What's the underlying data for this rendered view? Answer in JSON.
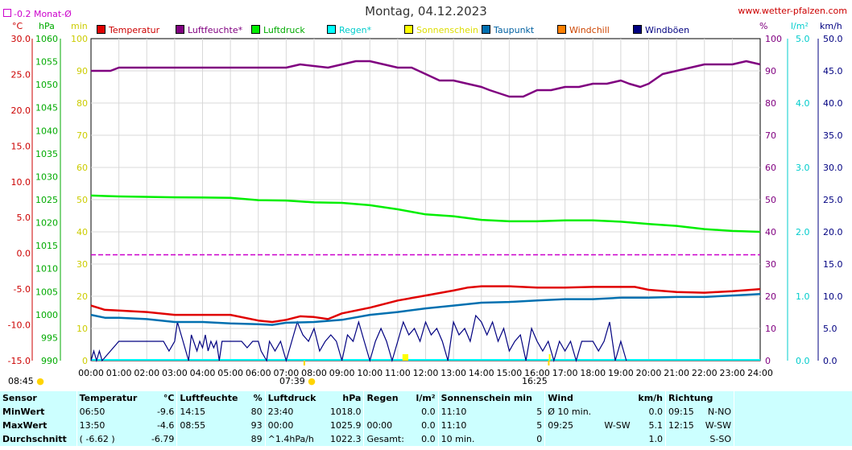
{
  "header": {
    "title": "Montag, 04.12.2023",
    "site": "www.wetter-pfalzen.com",
    "monat_avg": "-0.2 Monat-Ø"
  },
  "units": {
    "temp": "°C",
    "hpa": "hPa",
    "min": "min",
    "pct": "%",
    "lm2": "l/m²",
    "kmh": "km/h"
  },
  "colors": {
    "temperatur": "#e00000",
    "luftfeuchte": "#800080",
    "luftdruck": "#00ee00",
    "regen": "#00ffff",
    "sonnenschein": "#ffff00",
    "taupunkt": "#0070b0",
    "windchill": "#ff8000",
    "windboeen": "#000080"
  },
  "legend": [
    {
      "key": "temperatur",
      "label": "Temperatur",
      "color": "#e00000",
      "text_color": "#cc0000"
    },
    {
      "key": "luftfeuchte",
      "label": "Luftfeuchte*",
      "color": "#800080",
      "text_color": "#800080"
    },
    {
      "key": "luftdruck",
      "label": "Luftdruck",
      "color": "#00ee00",
      "text_color": "#00aa00"
    },
    {
      "key": "regen",
      "label": "Regen*",
      "color": "#00ffff",
      "text_color": "#00cccc"
    },
    {
      "key": "sonnenschein",
      "label": "Sonnenschein",
      "color": "#ffff00",
      "text_color": "#dddd00"
    },
    {
      "key": "taupunkt",
      "label": "Taupunkt",
      "color": "#0070b0",
      "text_color": "#0060a0"
    },
    {
      "key": "windchill",
      "label": "Windchill",
      "color": "#ff8000",
      "text_color": "#cc4400"
    },
    {
      "key": "windboeen",
      "label": "Windböen",
      "color": "#000080",
      "text_color": "#000080"
    }
  ],
  "axis_ticks": {
    "temp": [
      "30.0",
      "25.0",
      "20.0",
      "15.0",
      "10.0",
      "5.0",
      "0.0",
      "-5.0",
      "-10.0",
      "-15.0"
    ],
    "hpa": [
      "1060",
      "1055",
      "1050",
      "1045",
      "1040",
      "1035",
      "1030",
      "1025",
      "1020",
      "1015",
      "1010",
      "1005",
      "1000",
      "995",
      "990"
    ],
    "min": [
      "100",
      "90",
      "80",
      "70",
      "60",
      "50",
      "40",
      "30",
      "20",
      "10",
      "0"
    ],
    "pct": [
      "100",
      "90",
      "80",
      "70",
      "60",
      "50",
      "40",
      "30",
      "20",
      "10",
      "0"
    ],
    "lm2": [
      "5.0",
      "4.0",
      "3.0",
      "2.0",
      "1.0",
      "0.0"
    ],
    "kmh": [
      "50.0",
      "45.0",
      "40.0",
      "35.0",
      "30.0",
      "25.0",
      "20.0",
      "15.0",
      "10.0",
      "5.0",
      "0.0"
    ],
    "time": [
      "00:00",
      "01:00",
      "02:00",
      "03:00",
      "04:00",
      "05:00",
      "06:00",
      "07:00",
      "08:00",
      "09:00",
      "10:00",
      "11:00",
      "12:00",
      "13:00",
      "14:00",
      "15:00",
      "16:00",
      "17:00",
      "18:00",
      "19:00",
      "20:00",
      "21:00",
      "22:00",
      "23:00",
      "24:00"
    ]
  },
  "markers": {
    "sunrise": "07:39",
    "sunset": "16:25",
    "bottom_left": "08:45"
  },
  "chart_data": {
    "type": "line",
    "title": "Montag, 04.12.2023",
    "x_unit": "hours",
    "xlim": [
      0,
      24
    ],
    "monat_avg_temp": -0.2,
    "series": [
      {
        "name": "Luftfeuchte*",
        "axis": "pct",
        "ylim": [
          0,
          100
        ],
        "x": [
          0,
          0.7,
          1,
          3,
          6,
          7,
          7.5,
          8.5,
          9,
          9.5,
          10,
          10.5,
          11,
          11.5,
          12,
          12.5,
          13,
          13.5,
          14,
          14.3,
          15,
          15.5,
          16,
          16.5,
          17,
          17.5,
          18,
          18.5,
          19,
          19.3,
          19.7,
          20,
          20.5,
          21,
          21.5,
          22,
          22.5,
          23,
          23.5,
          24
        ],
        "y": [
          90,
          90,
          91,
          91,
          91,
          91,
          92,
          91,
          92,
          93,
          93,
          92,
          91,
          91,
          89,
          87,
          87,
          86,
          85,
          84,
          82,
          82,
          84,
          84,
          85,
          85,
          86,
          86,
          87,
          86,
          85,
          86,
          89,
          90,
          91,
          92,
          92,
          92,
          93,
          92
        ]
      },
      {
        "name": "Luftdruck",
        "axis": "hpa",
        "ylim": [
          990,
          1060
        ],
        "x": [
          0,
          1,
          3,
          5,
          6,
          7,
          8,
          9,
          10,
          11,
          12,
          13,
          14,
          15,
          16,
          17,
          18,
          19,
          20,
          21,
          22,
          23,
          24
        ],
        "y": [
          1025.9,
          1025.7,
          1025.5,
          1025.4,
          1024.9,
          1024.8,
          1024.4,
          1024.3,
          1023.8,
          1022.9,
          1021.8,
          1021.4,
          1020.6,
          1020.3,
          1020.3,
          1020.5,
          1020.5,
          1020.2,
          1019.7,
          1019.3,
          1018.6,
          1018.2,
          1018.0
        ]
      },
      {
        "name": "Temperatur",
        "axis": "temp",
        "ylim": [
          -15,
          30
        ],
        "x": [
          0,
          0.5,
          1,
          2,
          3,
          4,
          5,
          6,
          6.5,
          7,
          7.5,
          8,
          8.5,
          9,
          10,
          11,
          12,
          13,
          13.5,
          14,
          15,
          16,
          17,
          18,
          19,
          19.5,
          20,
          21,
          22,
          23,
          24
        ],
        "y": [
          -7.3,
          -7.9,
          -8.0,
          -8.2,
          -8.6,
          -8.6,
          -8.6,
          -9.4,
          -9.6,
          -9.3,
          -8.8,
          -8.9,
          -9.2,
          -8.4,
          -7.6,
          -6.6,
          -5.9,
          -5.2,
          -4.8,
          -4.6,
          -4.6,
          -4.8,
          -4.8,
          -4.7,
          -4.7,
          -4.7,
          -5.1,
          -5.4,
          -5.5,
          -5.3,
          -5.0
        ]
      },
      {
        "name": "Taupunkt",
        "axis": "temp",
        "ylim": [
          -15,
          30
        ],
        "x": [
          0,
          0.5,
          1,
          2,
          3,
          4,
          5,
          6,
          6.5,
          7,
          8,
          9,
          10,
          11,
          12,
          13,
          14,
          15,
          16,
          17,
          18,
          19,
          20,
          21,
          22,
          23,
          24
        ],
        "y": [
          -8.6,
          -9.0,
          -9.0,
          -9.2,
          -9.6,
          -9.6,
          -9.8,
          -9.9,
          -10.0,
          -9.7,
          -9.6,
          -9.3,
          -8.6,
          -8.2,
          -7.7,
          -7.3,
          -6.9,
          -6.8,
          -6.6,
          -6.4,
          -6.4,
          -6.2,
          -6.2,
          -6.1,
          -6.1,
          -5.9,
          -5.7
        ]
      }
    ],
    "regen_mm": 0.0,
    "windboeen_kmh": {
      "range": [
        0,
        50
      ],
      "x": [
        0,
        0.1,
        0.2,
        0.3,
        0.4,
        1.0,
        1.1,
        1.3,
        1.2,
        2.6,
        2.8,
        3.0,
        3.1,
        3.3,
        3.5,
        3.6,
        3.8,
        3.9,
        4.0,
        4.1,
        4.2,
        4.3,
        4.4,
        4.5,
        4.6,
        4.7,
        5.0,
        5.1,
        5.3,
        5.4,
        5.6,
        5.8,
        6.0,
        6.1,
        6.3,
        6.4,
        6.6,
        6.8,
        7.0,
        7.2,
        7.4,
        7.6,
        7.8,
        8.0,
        8.2,
        8.4,
        8.6,
        8.8,
        9.0,
        9.2,
        9.4,
        9.6,
        9.8,
        10.0,
        10.2,
        10.4,
        10.6,
        10.8,
        11.0,
        11.2,
        11.4,
        11.6,
        11.8,
        12.0,
        12.2,
        12.4,
        12.6,
        12.8,
        13.0,
        13.2,
        13.4,
        13.6,
        13.8,
        14.0,
        14.2,
        14.4,
        14.6,
        14.8,
        15.0,
        15.2,
        15.4,
        15.6,
        15.8,
        16.0,
        16.2,
        16.4,
        16.6,
        16.8,
        17.0,
        17.2,
        17.4,
        17.6,
        17.8,
        18.0,
        18.2,
        18.4,
        18.6,
        18.8,
        19.0,
        19.2
      ],
      "y": [
        0,
        1.5,
        0,
        1.5,
        0,
        3,
        3,
        3,
        3,
        3,
        1.5,
        3,
        6,
        3,
        0,
        4,
        1.5,
        3,
        2,
        4,
        1.5,
        3,
        2,
        3,
        0,
        3,
        3,
        3,
        3,
        3,
        2,
        3,
        3,
        1.5,
        0,
        3,
        1.5,
        3,
        0,
        3,
        6,
        4,
        3,
        5,
        1.5,
        3,
        4,
        3,
        0,
        4,
        3,
        6,
        3,
        0,
        3,
        5,
        3,
        0,
        3,
        6,
        4,
        5,
        3,
        6,
        4,
        5,
        3,
        0,
        6,
        4,
        5,
        3,
        7,
        6,
        4,
        6,
        3,
        5,
        1.5,
        3,
        4,
        0,
        5,
        3,
        1.5,
        3,
        0,
        3,
        1.5,
        3,
        0,
        3,
        3,
        3,
        1.5,
        3,
        6,
        0,
        3,
        0
      ]
    },
    "sonnenschein": {
      "events": [
        {
          "time": "11:10",
          "min": 5
        }
      ],
      "sun_x": [
        11.2,
        11.25,
        11.3,
        11.35,
        16.45
      ],
      "sun_h": [
        2,
        2,
        2,
        2,
        2
      ]
    },
    "stats": {
      "columns": [
        "Sensor",
        "Temperatur",
        "°C",
        "Luftfeuchte",
        "%",
        "Luftdruck",
        "hPa",
        "Regen",
        "l/m²",
        "Sonnenschein min",
        "Wind",
        "km/h",
        "Richtung"
      ],
      "rows": [
        {
          "label": "MinWert",
          "temp_time": "06:50",
          "temp": "-9.6",
          "hum_time": "14:15",
          "hum": "80",
          "press_time": "23:40",
          "press": "1018.0",
          "rain_time": "",
          "rain": "0.0",
          "sun_time": "11:10",
          "sun": "5",
          "wind_time": "Ø 10 min.",
          "wind_dir": "",
          "wind": "0.0",
          "dir_time": "09:15",
          "dir": "N-NO"
        },
        {
          "label": "MaxWert",
          "temp_time": "13:50",
          "temp": "-4.6",
          "hum_time": "08:55",
          "hum": "93",
          "press_time": "00:00",
          "press": "1025.9",
          "rain_time": "00:00",
          "rain": "0.0",
          "sun_time": "11:10",
          "sun": "5",
          "wind_time": "09:25",
          "wind_dir": "W-SW",
          "wind": "5.1",
          "dir_time": "12:15",
          "dir": "W-SW"
        },
        {
          "label": "Durchschnitt",
          "temp_time": "( -6.62 )",
          "temp": "-6.79",
          "hum_time": "",
          "hum": "89",
          "press_time": "^1.4hPa/h",
          "press": "1022.3",
          "rain_time": "Gesamt:",
          "rain": "0.0",
          "sun_time": "10 min.",
          "sun": "0",
          "wind_time": "",
          "wind_dir": "",
          "wind": "1.0",
          "dir_time": "",
          "dir": "S-SO"
        }
      ]
    }
  }
}
